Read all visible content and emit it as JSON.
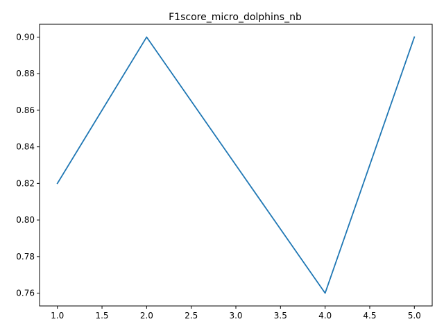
{
  "chart_data": {
    "type": "line",
    "title": "F1score_micro_dolphins_nb",
    "xlabel": "",
    "ylabel": "",
    "x": [
      1,
      2,
      3,
      4,
      5
    ],
    "series": [
      {
        "name": "",
        "values": [
          0.82,
          0.9,
          0.83,
          0.76,
          0.9
        ],
        "color": "#1f77b4"
      }
    ],
    "xlim": [
      0.8,
      5.2
    ],
    "ylim": [
      0.753,
      0.907
    ],
    "xticks": [
      1.0,
      1.5,
      2.0,
      2.5,
      3.0,
      3.5,
      4.0,
      4.5,
      5.0
    ],
    "xtick_labels": [
      "1.0",
      "1.5",
      "2.0",
      "2.5",
      "3.0",
      "3.5",
      "4.0",
      "4.5",
      "5.0"
    ],
    "yticks": [
      0.76,
      0.78,
      0.8,
      0.82,
      0.84,
      0.86,
      0.88,
      0.9
    ],
    "ytick_labels": [
      "0.76",
      "0.78",
      "0.80",
      "0.82",
      "0.84",
      "0.86",
      "0.88",
      "0.90"
    ],
    "grid": false,
    "legend": "none"
  }
}
